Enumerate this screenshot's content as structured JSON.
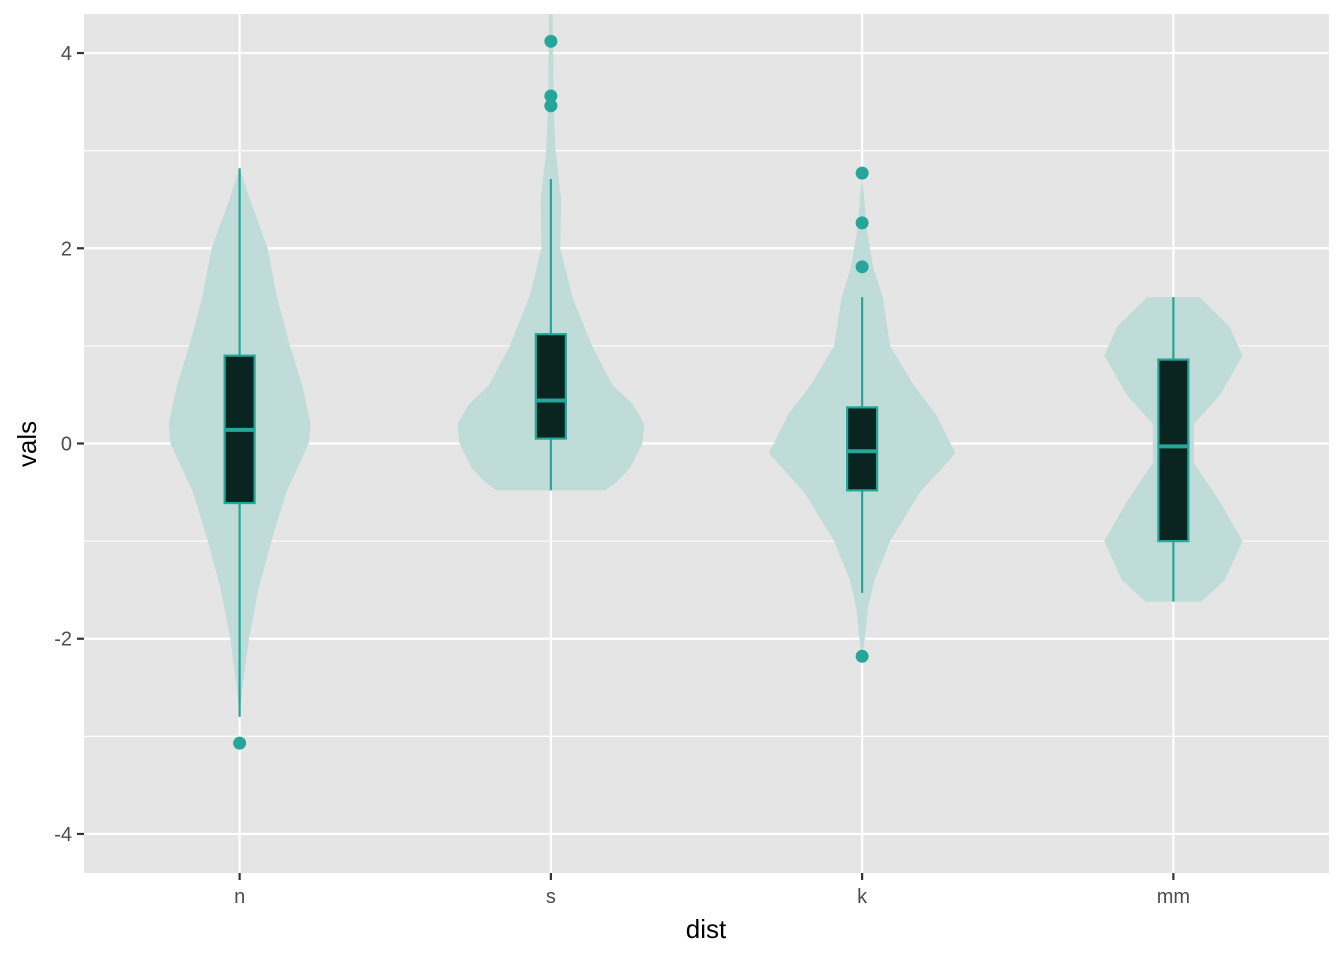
{
  "chart_data": {
    "type": "violin",
    "xlabel": "dist",
    "ylabel": "vals",
    "categories": [
      "n",
      "s",
      "k",
      "mm"
    ],
    "ylim": [
      -4.4,
      4.4
    ],
    "y_ticks": [
      -4,
      -2,
      0,
      2,
      4
    ],
    "y_tick_labels": [
      "-4",
      "-2",
      "0",
      "2",
      "4"
    ],
    "grid": true,
    "colors": {
      "panel_bg": "#e5e5e5",
      "grid": "#ffffff",
      "violin_fill": "#bfdcd8",
      "box_fill": "#0a2420",
      "accent": "#26a69a"
    },
    "boxes": [
      {
        "category": "n",
        "q1": -0.61,
        "median": 0.14,
        "q3": 0.9,
        "whisker_low": -2.8,
        "whisker_high": 2.82,
        "outliers": [
          -3.07
        ]
      },
      {
        "category": "s",
        "q1": 0.05,
        "median": 0.44,
        "q3": 1.12,
        "whisker_low": -0.48,
        "whisker_high": 2.71,
        "outliers": [
          4.12,
          3.56,
          3.46
        ]
      },
      {
        "category": "k",
        "q1": -0.48,
        "median": -0.08,
        "q3": 0.37,
        "whisker_low": -1.53,
        "whisker_high": 1.5,
        "outliers": [
          2.77,
          2.26,
          1.81,
          -2.18
        ]
      },
      {
        "category": "mm",
        "q1": -1.0,
        "median": -0.03,
        "q3": 0.86,
        "whisker_low": -1.62,
        "whisker_high": 1.5,
        "outliers": []
      }
    ],
    "violins": [
      {
        "category": "n",
        "density": [
          [
            -2.8,
            0.0
          ],
          [
            -2.5,
            0.03
          ],
          [
            -2.0,
            0.1
          ],
          [
            -1.5,
            0.2
          ],
          [
            -1.0,
            0.34
          ],
          [
            -0.5,
            0.5
          ],
          [
            0.0,
            0.74
          ],
          [
            0.2,
            0.76
          ],
          [
            0.6,
            0.67
          ],
          [
            1.0,
            0.54
          ],
          [
            1.5,
            0.4
          ],
          [
            2.0,
            0.3
          ],
          [
            2.5,
            0.11
          ],
          [
            2.82,
            0.0
          ]
        ]
      },
      {
        "category": "s",
        "density": [
          [
            -0.48,
            0.58
          ],
          [
            -0.4,
            0.7
          ],
          [
            -0.25,
            0.85
          ],
          [
            0.0,
            0.98
          ],
          [
            0.2,
            1.0
          ],
          [
            0.4,
            0.88
          ],
          [
            0.6,
            0.66
          ],
          [
            1.0,
            0.44
          ],
          [
            1.5,
            0.23
          ],
          [
            2.0,
            0.1
          ],
          [
            2.5,
            0.11
          ],
          [
            3.0,
            0.05
          ],
          [
            3.5,
            0.03
          ],
          [
            4.4,
            0.02
          ]
        ]
      },
      {
        "category": "k",
        "density": [
          [
            -2.18,
            0.0
          ],
          [
            -2.0,
            0.03
          ],
          [
            -1.7,
            0.06
          ],
          [
            -1.4,
            0.13
          ],
          [
            -1.0,
            0.3
          ],
          [
            -0.5,
            0.62
          ],
          [
            -0.1,
            1.0
          ],
          [
            0.3,
            0.79
          ],
          [
            0.6,
            0.55
          ],
          [
            1.0,
            0.3
          ],
          [
            1.5,
            0.22
          ],
          [
            1.8,
            0.12
          ],
          [
            2.2,
            0.05
          ],
          [
            2.77,
            0.0
          ]
        ]
      },
      {
        "category": "mm",
        "density": [
          [
            -1.62,
            0.3
          ],
          [
            -1.4,
            0.55
          ],
          [
            -1.0,
            0.74
          ],
          [
            -0.6,
            0.5
          ],
          [
            -0.2,
            0.22
          ],
          [
            0.2,
            0.22
          ],
          [
            0.5,
            0.5
          ],
          [
            0.9,
            0.74
          ],
          [
            1.2,
            0.6
          ],
          [
            1.5,
            0.28
          ]
        ]
      }
    ]
  }
}
